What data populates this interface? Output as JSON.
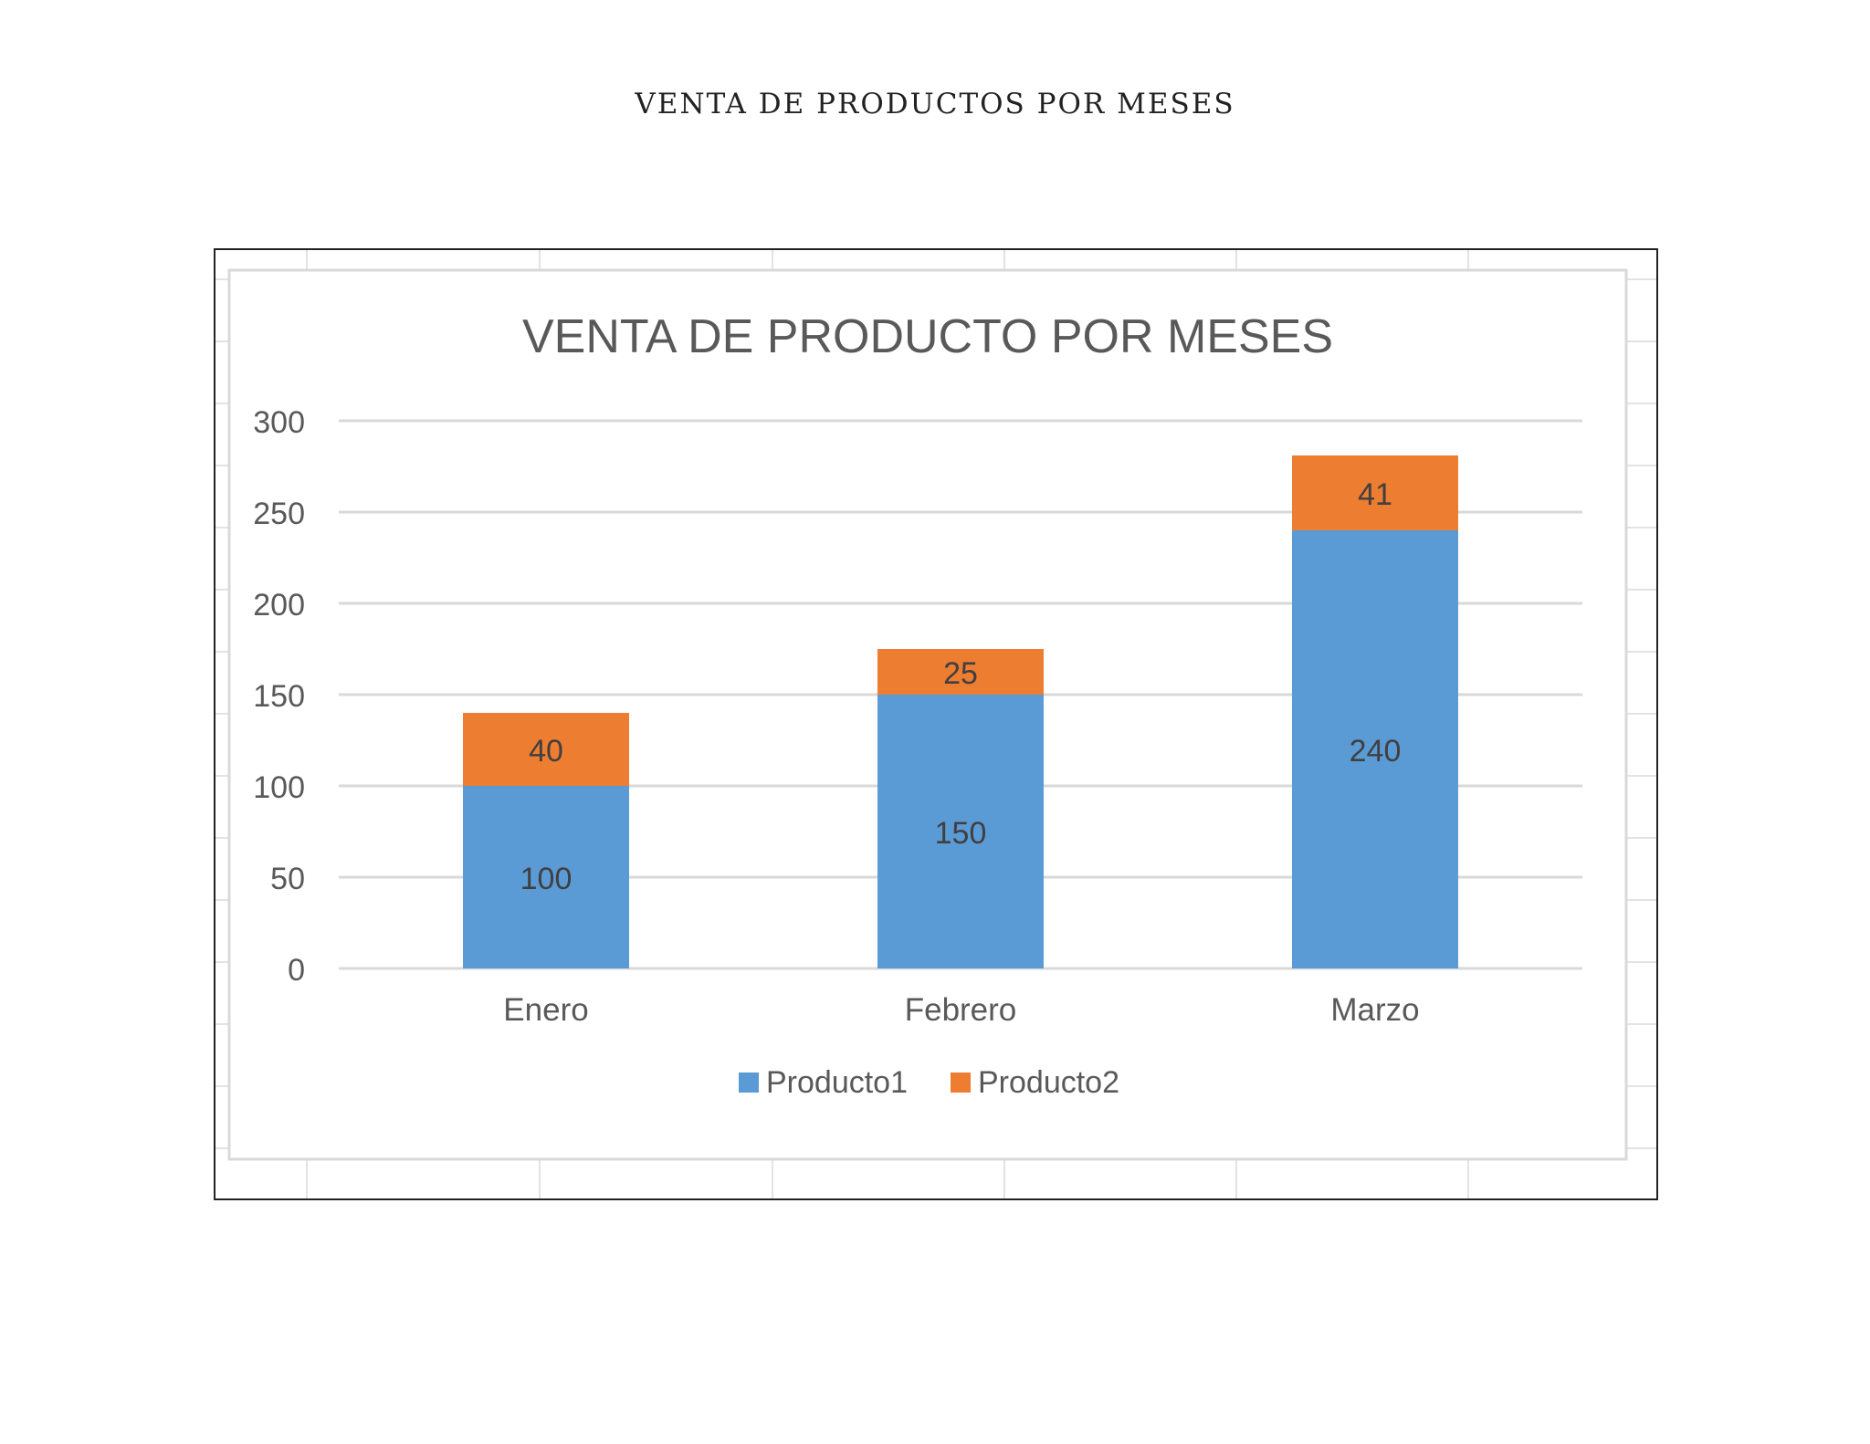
{
  "document": {
    "heading": "VENTA DE PRODUCTOS POR MESES"
  },
  "colors": {
    "producto1": "#5b9bd5",
    "producto2": "#ed7d31",
    "gridline": "#d9d9d9",
    "text": "#595959"
  },
  "chart_data": {
    "type": "bar",
    "stacked": true,
    "title": "VENTA DE PRODUCTO POR MESES",
    "categories": [
      "Enero",
      "Febrero",
      "Marzo"
    ],
    "series": [
      {
        "name": "Producto1",
        "values": [
          100,
          150,
          240
        ]
      },
      {
        "name": "Producto2",
        "values": [
          40,
          25,
          41
        ]
      }
    ],
    "data_labels": true,
    "xlabel": "",
    "ylabel": "",
    "ylim": [
      0,
      300
    ],
    "yticks": [
      0,
      50,
      100,
      150,
      200,
      250,
      300
    ],
    "grid": true,
    "legend": "bottom"
  }
}
